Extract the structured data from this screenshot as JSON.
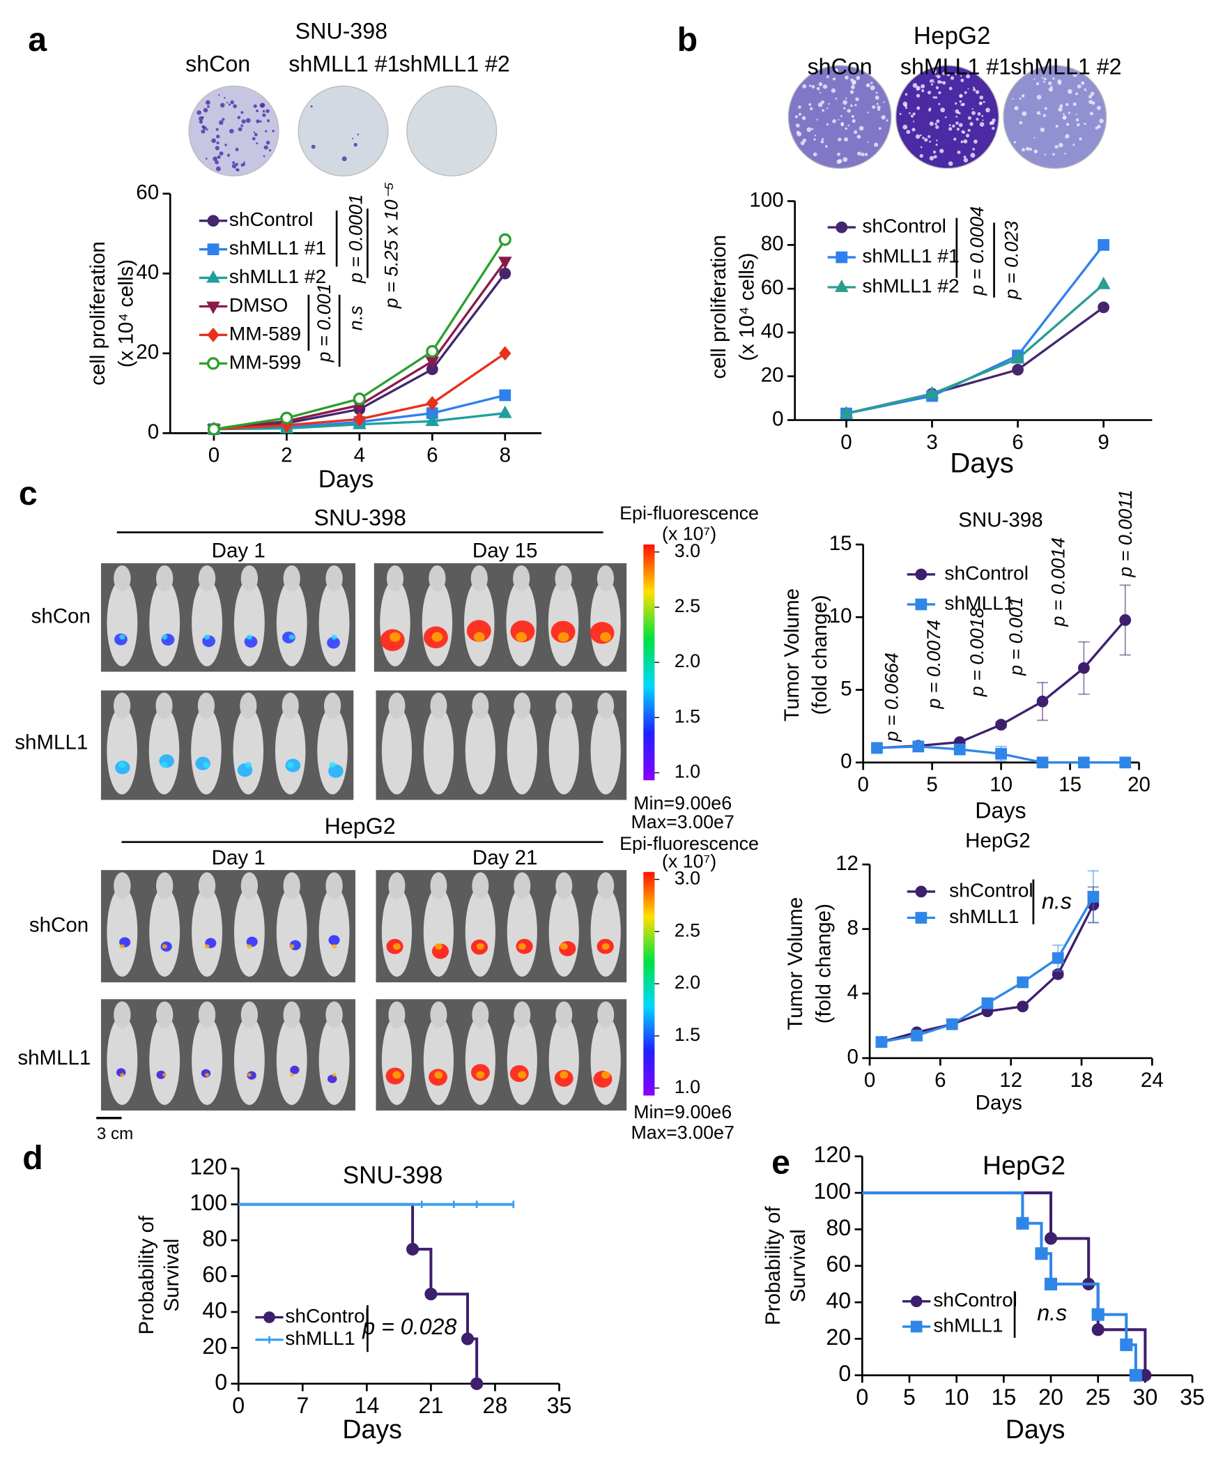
{
  "figure": {
    "panel_labels": [
      "a",
      "b",
      "c",
      "d",
      "e"
    ],
    "colonies": [
      [
        "shCon",
        "shMLL1 #1",
        "shMLL1 #2"
      ],
      [
        "shCon",
        "shMLL1 #1",
        "shMLL1 #2"
      ]
    ],
    "imaging": [
      {
        "title": "SNU-398",
        "days": [
          "Day 1",
          "Day 15"
        ],
        "groups": [
          "shCon",
          "shMLL1"
        ]
      },
      {
        "title": "HepG2",
        "days": [
          "Day 1",
          "Day 21"
        ],
        "groups": [
          "shCon",
          "shMLL1"
        ]
      }
    ],
    "colorbars": [
      {
        "title": "Epi-fluorescence",
        "unit": "(x 10⁷)",
        "lim": [
          1,
          3
        ],
        "ticks": [
          {
            "value": 3,
            "label": "3.0"
          },
          2.5,
          {
            "value": 2,
            "label": "2.0"
          },
          1.5,
          {
            "value": 1,
            "label": "1.0"
          }
        ],
        "min": "Min=9.00e6",
        "max": "Max=3.00e7"
      },
      {
        "title": "Epi-fluorescence",
        "unit": "(x 10⁷)",
        "lim": [
          1,
          3
        ],
        "ticks": [
          {
            "value": 3,
            "label": "3.0"
          },
          2.5,
          {
            "value": 2,
            "label": "2.0"
          },
          1.5,
          {
            "value": 1,
            "label": "1.0"
          }
        ],
        "min": "Min=9.00e6",
        "max": "Max=3.00e7"
      }
    ],
    "scale_bar": "3 cm"
  },
  "chart_data": [
    {
      "type": "line",
      "title": "SNU-398",
      "xlabel": "Days",
      "ylabel": [
        "cell proliferation",
        "(x 10⁴ cells)"
      ],
      "x": [
        0,
        2,
        4,
        6,
        8
      ],
      "xlim": [
        -1.2,
        9
      ],
      "xticks": [
        0,
        2,
        4,
        6,
        8
      ],
      "ylim": [
        0,
        60
      ],
      "yticks": [
        0,
        20,
        40,
        60
      ],
      "series": [
        {
          "name": "shControl",
          "color": "#45266f",
          "marker": "circle",
          "values": [
            1,
            2.5,
            6,
            16,
            40
          ]
        },
        {
          "name": "shMLL1 #1",
          "color": "#2f80ed",
          "marker": "square",
          "values": [
            1,
            1.5,
            2.8,
            5,
            9.5
          ]
        },
        {
          "name": "shMLL1 #2",
          "color": "#1f9e9e",
          "marker": "triangle",
          "values": [
            1,
            1.2,
            2.2,
            3,
            5
          ]
        },
        {
          "name": "DMSO",
          "color": "#8b1a4a",
          "marker": "triangle-down",
          "values": [
            1,
            3,
            7,
            18,
            43
          ]
        },
        {
          "name": "MM-589",
          "color": "#e8301c",
          "marker": "diamond",
          "values": [
            1,
            2,
            3.5,
            7.5,
            20
          ]
        },
        {
          "name": "MM-599",
          "color": "#2ca02c",
          "marker": "open-circle",
          "values": [
            1,
            3.8,
            8.6,
            20.5,
            48.5
          ]
        }
      ],
      "annotations": [
        "p = 0.0001",
        "p = 5.25 x 10⁻⁵",
        "p = 0.001",
        "n.s"
      ]
    },
    {
      "type": "line",
      "title": "HepG2",
      "xlabel": "Days",
      "ylabel": [
        "cell proliferation",
        "(x 10⁴ cells)"
      ],
      "x": [
        0,
        3,
        6,
        9
      ],
      "xlim": [
        -1.8,
        10.7
      ],
      "xticks": [
        0,
        3,
        6,
        9
      ],
      "ylim": [
        0,
        100
      ],
      "yticks": [
        0,
        20,
        40,
        60,
        80,
        100
      ],
      "series": [
        {
          "name": "shControl",
          "color": "#45266f",
          "marker": "circle",
          "values": [
            3,
            12,
            23,
            51.5
          ]
        },
        {
          "name": "shMLL1 #1",
          "color": "#2f80ed",
          "marker": "square",
          "values": [
            3,
            11,
            29.5,
            80
          ]
        },
        {
          "name": "shMLL1 #2",
          "color": "#2a9d8f",
          "marker": "triangle",
          "values": [
            3,
            12,
            28,
            62
          ]
        }
      ],
      "annotations": [
        "p = 0.0004",
        "p = 0.023"
      ]
    },
    {
      "type": "line",
      "title": "SNU-398",
      "xlabel": "Days",
      "ylabel": [
        "Tumor Volume",
        "(fold change)"
      ],
      "x": [
        1,
        4,
        7,
        10,
        13,
        16,
        19
      ],
      "xlim": [
        0,
        20
      ],
      "xticks": [
        0,
        5,
        10,
        15,
        20
      ],
      "ylim": [
        0,
        15
      ],
      "yticks": [
        0,
        5,
        10,
        15
      ],
      "series": [
        {
          "name": "shControl",
          "color": "#3d1f6e",
          "marker": "circle",
          "values": [
            1,
            1.15,
            1.4,
            2.6,
            4.2,
            6.5,
            9.8
          ],
          "errors": [
            0.1,
            0.1,
            0.1,
            0.2,
            1.3,
            1.8,
            2.4
          ]
        },
        {
          "name": "shMLL1",
          "color": "#2f86e8",
          "marker": "square",
          "values": [
            1,
            1.1,
            0.9,
            0.6,
            0,
            0,
            0
          ],
          "errors": [
            0.1,
            0.1,
            0.2,
            0.5,
            0,
            0,
            0
          ]
        }
      ],
      "annotations": [
        "p = 0.0664",
        "p = 0.0074",
        "p = 0.0018",
        "p = 0.001",
        "p = 0.0014",
        "p = 0.0011"
      ]
    },
    {
      "type": "line",
      "title": "HepG2",
      "xlabel": "Days",
      "ylabel": [
        "Tumor Volume",
        "(fold change)"
      ],
      "x": [
        1,
        4,
        7,
        10,
        13,
        16,
        19
      ],
      "xlim": [
        0,
        24
      ],
      "xticks": [
        0,
        6,
        12,
        18,
        24
      ],
      "ylim": [
        0,
        12
      ],
      "yticks": [
        0,
        4,
        8,
        12
      ],
      "series": [
        {
          "name": "shControl",
          "color": "#3d1f6e",
          "marker": "circle",
          "values": [
            1,
            1.6,
            2.1,
            2.9,
            3.2,
            5.2,
            9.5
          ],
          "errors": [
            0.1,
            0.1,
            0.1,
            0.1,
            0.1,
            0.2,
            1.1
          ]
        },
        {
          "name": "shMLL1",
          "color": "#2f86e8",
          "marker": "square",
          "values": [
            1,
            1.4,
            2.1,
            3.4,
            4.7,
            6.2,
            10
          ],
          "errors": [
            0.1,
            0.1,
            0.1,
            0.3,
            0.3,
            0.8,
            1.6
          ]
        }
      ],
      "annotations": [
        "n.s"
      ]
    },
    {
      "type": "survival",
      "title": "SNU-398",
      "xlabel": "Days",
      "ylabel": [
        "Probability of",
        "Survival"
      ],
      "xlim": [
        0,
        35
      ],
      "xticks": [
        0,
        7,
        14,
        21,
        28,
        35
      ],
      "ylim": [
        0,
        120
      ],
      "yticks": [
        0,
        20,
        40,
        60,
        80,
        100,
        120
      ],
      "series": [
        {
          "name": "shControl",
          "color": "#3d1f6e",
          "marker": "circle",
          "x": [
            0,
            19,
            21,
            25,
            26
          ],
          "values": [
            100,
            75,
            50,
            25,
            0
          ]
        },
        {
          "name": "shMLL1",
          "color": "#3aa0f0",
          "marker": "tick",
          "x": [
            0,
            20,
            23.5,
            26,
            30
          ],
          "values": [
            100,
            100,
            100,
            100,
            100
          ]
        }
      ],
      "annotations": [
        "p = 0.028"
      ]
    },
    {
      "type": "survival",
      "title": "HepG2",
      "xlabel": "Days",
      "ylabel": [
        "Probability of",
        "Survival"
      ],
      "xlim": [
        0,
        35
      ],
      "xticks": [
        0,
        5,
        10,
        15,
        20,
        25,
        30,
        35
      ],
      "ylim": [
        0,
        120
      ],
      "yticks": [
        0,
        20,
        40,
        60,
        80,
        100,
        120
      ],
      "series": [
        {
          "name": "shControl",
          "color": "#3d1f6e",
          "marker": "circle",
          "x": [
            0,
            20,
            24,
            25,
            30
          ],
          "values": [
            100,
            75,
            50,
            25,
            0
          ]
        },
        {
          "name": "shMLL1",
          "color": "#2f86e8",
          "marker": "square",
          "x": [
            0,
            17,
            19,
            20,
            25,
            28,
            29
          ],
          "values": [
            100,
            83.3,
            66.7,
            50,
            33.3,
            16.7,
            0
          ]
        }
      ],
      "annotations": [
        "n.s"
      ]
    }
  ]
}
